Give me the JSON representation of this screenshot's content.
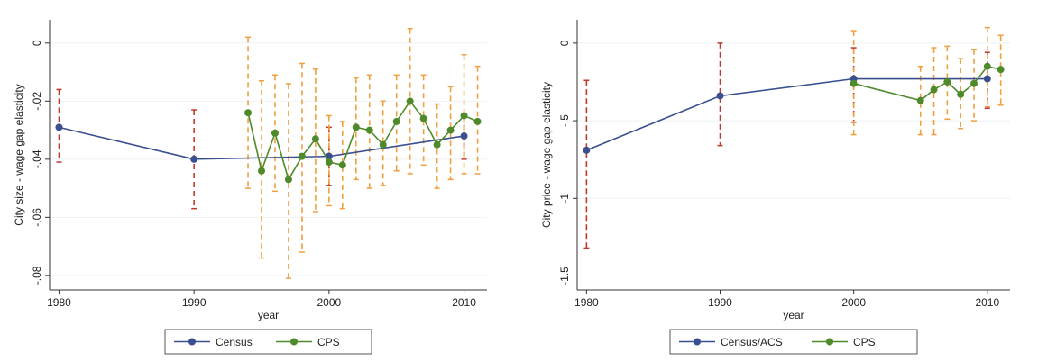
{
  "chart_data": [
    {
      "type": "line",
      "xlabel": "year",
      "ylabel": "City size - wage gap elasticity",
      "xlim": [
        1979.3,
        2011.7
      ],
      "ylim": [
        -0.085,
        0.008
      ],
      "xticks": [
        "1980",
        "1990",
        "2000",
        "2010"
      ],
      "yticks": [
        "0",
        "-.02",
        "-.04",
        "-.06",
        "-.08"
      ],
      "ytick_values": [
        0,
        -0.02,
        -0.04,
        -0.06,
        -0.08
      ],
      "grid": true,
      "legend": "bottom-center",
      "series": [
        {
          "name": "Census",
          "color": "#3a4f8f",
          "ci_color": "#c0392b",
          "x": [
            1980,
            1990,
            2000,
            2010
          ],
          "y": [
            -0.029,
            -0.04,
            -0.039,
            -0.032
          ],
          "lo": [
            -0.041,
            -0.057,
            -0.049,
            -0.04
          ],
          "hi": [
            -0.016,
            -0.023,
            -0.029,
            -0.025
          ]
        },
        {
          "name": "CPS",
          "color": "#4f8a2a",
          "ci_color": "#f0a040",
          "x": [
            1994,
            1995,
            1996,
            1997,
            1998,
            1999,
            2000,
            2001,
            2002,
            2003,
            2004,
            2005,
            2006,
            2007,
            2008,
            2009,
            2010,
            2011
          ],
          "y": [
            -0.024,
            -0.044,
            -0.031,
            -0.047,
            -0.039,
            -0.033,
            -0.041,
            -0.042,
            -0.029,
            -0.03,
            -0.035,
            -0.027,
            -0.02,
            -0.026,
            -0.035,
            -0.03,
            -0.025,
            -0.027
          ],
          "lo": [
            -0.05,
            -0.074,
            -0.051,
            -0.081,
            -0.072,
            -0.058,
            -0.056,
            -0.057,
            -0.047,
            -0.05,
            -0.049,
            -0.044,
            -0.045,
            -0.042,
            -0.05,
            -0.047,
            -0.045,
            -0.045
          ],
          "hi": [
            0.002,
            -0.013,
            -0.011,
            -0.014,
            -0.007,
            -0.009,
            -0.025,
            -0.027,
            -0.012,
            -0.011,
            -0.02,
            -0.011,
            0.005,
            -0.011,
            -0.021,
            -0.015,
            -0.004,
            -0.008
          ]
        }
      ]
    },
    {
      "type": "line",
      "xlabel": "year",
      "ylabel": "City price - wage gap elasticity",
      "xlim": [
        1979.3,
        2011.7
      ],
      "ylim": [
        -1.59,
        0.15
      ],
      "xticks": [
        "1980",
        "1990",
        "2000",
        "2010"
      ],
      "yticks": [
        "0",
        "-.5",
        "-1",
        "-1.5"
      ],
      "ytick_values": [
        0,
        -0.5,
        -1,
        -1.5
      ],
      "grid": true,
      "legend": "bottom-center",
      "series": [
        {
          "name": "Census/ACS",
          "color": "#3a4f8f",
          "ci_color": "#c0392b",
          "x": [
            1980,
            1990,
            2000,
            2010
          ],
          "y": [
            -0.69,
            -0.34,
            -0.23,
            -0.23
          ],
          "lo": [
            -1.32,
            -0.66,
            -0.51,
            -0.42
          ],
          "hi": [
            -0.24,
            0.0,
            -0.03,
            -0.06
          ]
        },
        {
          "name": "CPS",
          "color": "#4f8a2a",
          "ci_color": "#f0a040",
          "x": [
            2000,
            2005,
            2006,
            2007,
            2008,
            2009,
            2010,
            2011
          ],
          "y": [
            -0.26,
            -0.37,
            -0.3,
            -0.25,
            -0.33,
            -0.26,
            -0.15,
            -0.17
          ],
          "lo": [
            -0.59,
            -0.59,
            -0.59,
            -0.49,
            -0.55,
            -0.5,
            -0.41,
            -0.4
          ],
          "hi": [
            0.08,
            -0.15,
            -0.03,
            -0.02,
            -0.1,
            -0.04,
            0.1,
            0.05
          ]
        }
      ]
    }
  ]
}
